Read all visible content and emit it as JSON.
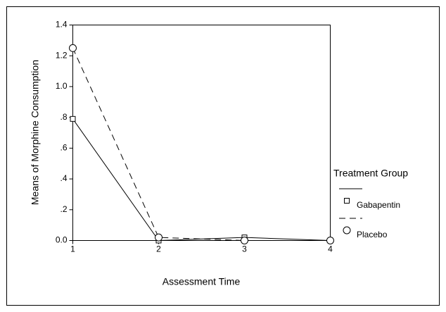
{
  "chart_data": {
    "type": "line",
    "x_label": "Assessment Time",
    "y_label": "Means of Morphine Consumption",
    "x": [
      1,
      2,
      3,
      4
    ],
    "xlim": [
      1,
      4
    ],
    "xticks": [
      1,
      2,
      3,
      4
    ],
    "ylim": [
      0,
      1.4
    ],
    "yticks": [
      {
        "value": 0,
        "label": "0.0"
      },
      {
        "value": 0.2,
        "label": ".2"
      },
      {
        "value": 0.4,
        "label": ".4"
      },
      {
        "value": 0.6,
        "label": ".6"
      },
      {
        "value": 0.8,
        "label": ".8"
      },
      {
        "value": 1.0,
        "label": "1.0"
      },
      1.2,
      1.4
    ],
    "legend_title": "Treatment Group",
    "legend": "right",
    "series": [
      {
        "name": "Gabapentin",
        "color": "#000000",
        "line_style": "solid",
        "marker": "square",
        "values": [
          0.79,
          0.0,
          0.02,
          0.0
        ]
      },
      {
        "name": "Placebo",
        "color": "#000000",
        "line_style": "dashed",
        "marker": "circle",
        "values": [
          1.25,
          0.02,
          0.0,
          0.0
        ]
      }
    ]
  }
}
